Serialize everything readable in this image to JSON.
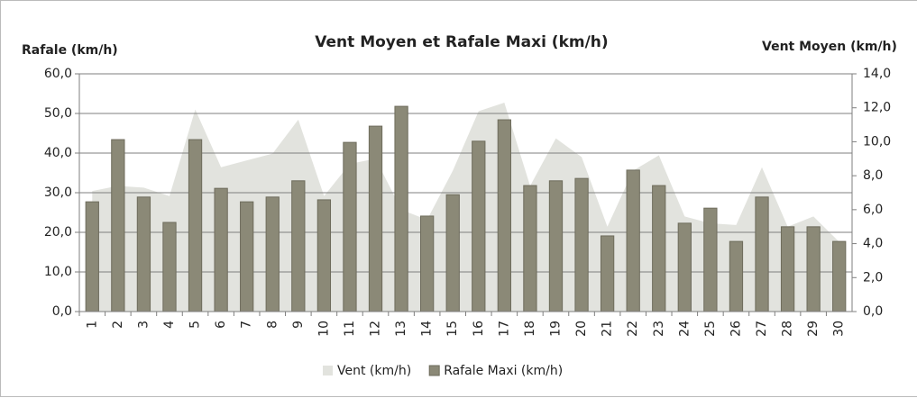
{
  "chart_data": {
    "type": "bar-area",
    "title": "Vent Moyen et Rafale Maxi (km/h)",
    "ylabel": "Rafale (km/h)",
    "y2label": "Vent Moyen (km/h)",
    "categories": [
      "1",
      "2",
      "3",
      "4",
      "5",
      "6",
      "7",
      "8",
      "9",
      "10",
      "11",
      "12",
      "13",
      "14",
      "15",
      "16",
      "17",
      "18",
      "19",
      "20",
      "21",
      "22",
      "23",
      "24",
      "25",
      "26",
      "27",
      "28",
      "29",
      "30"
    ],
    "series": [
      {
        "name": "Vent (km/h)",
        "type": "area",
        "axis": "y2",
        "color": "#e2e3de",
        "values": [
          7.1,
          7.4,
          7.3,
          6.8,
          11.9,
          8.5,
          8.9,
          9.3,
          11.3,
          6.8,
          8.7,
          9.0,
          6.0,
          5.4,
          8.3,
          11.8,
          12.3,
          7.4,
          10.2,
          9.1,
          5.0,
          8.3,
          9.2,
          5.6,
          5.2,
          5.1,
          8.5,
          5.0,
          5.6,
          4.1
        ]
      },
      {
        "name": "Rafale Maxi (km/h)",
        "type": "bar",
        "axis": "y",
        "color": "#8b8977",
        "values": [
          27.7,
          43.4,
          28.9,
          22.5,
          43.4,
          31.1,
          27.7,
          28.9,
          33.0,
          28.2,
          42.7,
          46.8,
          51.8,
          24.1,
          29.5,
          43.0,
          48.4,
          31.8,
          33.0,
          33.6,
          19.1,
          35.7,
          31.8,
          22.3,
          26.1,
          17.7,
          28.9,
          21.4,
          21.4,
          17.7
        ]
      }
    ],
    "ylim": [
      0,
      60
    ],
    "yticks": [
      {
        "value": 0,
        "label": "0,0"
      },
      {
        "value": 10,
        "label": "10,0"
      },
      {
        "value": 20,
        "label": "20,0"
      },
      {
        "value": 30,
        "label": "30,0"
      },
      {
        "value": 40,
        "label": "40,0"
      },
      {
        "value": 50,
        "label": "50,0"
      },
      {
        "value": 60,
        "label": "60,0"
      }
    ],
    "y2lim": [
      0,
      14
    ],
    "y2ticks": [
      {
        "value": 0,
        "label": "0,0"
      },
      {
        "value": 2,
        "label": "2,0"
      },
      {
        "value": 4,
        "label": "4,0"
      },
      {
        "value": 6,
        "label": "6,0"
      },
      {
        "value": 8,
        "label": "8,0"
      },
      {
        "value": 10,
        "label": "10,0"
      },
      {
        "value": 12,
        "label": "12,0"
      },
      {
        "value": 14,
        "label": "14,0"
      }
    ],
    "grid": true,
    "legend": "bottom"
  }
}
